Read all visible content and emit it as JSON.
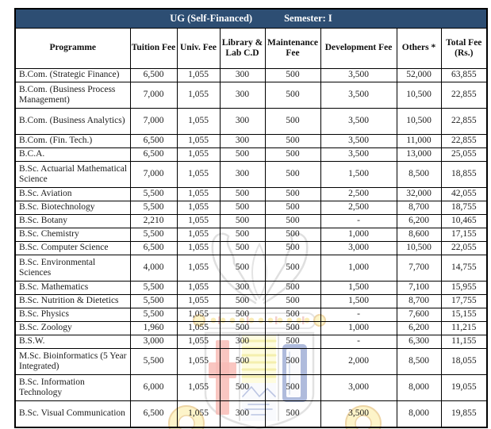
{
  "title": {
    "left": "UG (Self-Financed)",
    "right": "Semester: I"
  },
  "table": {
    "columns": [
      "Programme",
      "Tuition Fee",
      "Univ. Fee",
      "Library & Lab C.D",
      "Maintenance Fee",
      "Development Fee",
      "Others *",
      "Total Fee (Rs.)"
    ],
    "rows": [
      [
        "B.Com. (Strategic Finance)",
        "6,500",
        "1,055",
        "300",
        "500",
        "3,500",
        "52,000",
        "63,855"
      ],
      [
        "B.Com. (Business Process Management)",
        "7,000",
        "1,055",
        "300",
        "500",
        "3,500",
        "10,500",
        "22,855"
      ],
      [
        "B.Com. (Business Analytics)",
        "7,000",
        "1,055",
        "300",
        "500",
        "3,500",
        "10,500",
        "22,855"
      ],
      [
        "B.Com. (Fin. Tech.)",
        "6,500",
        "1,055",
        "300",
        "500",
        "3,500",
        "11,000",
        "22,855"
      ],
      [
        "B.C.A.",
        "6,500",
        "1,055",
        "500",
        "500",
        "3,500",
        "13,000",
        "25,055"
      ],
      [
        "B.Sc. Actuarial Mathematical Science",
        "7,000",
        "1,055",
        "300",
        "500",
        "1,500",
        "8,500",
        "18,855"
      ],
      [
        "B.Sc. Aviation",
        "5,500",
        "1,055",
        "500",
        "500",
        "2,500",
        "32,000",
        "42,055"
      ],
      [
        "B.Sc. Biotechnology",
        "5,500",
        "1,055",
        "500",
        "500",
        "2,500",
        "8,700",
        "18,755"
      ],
      [
        "B.Sc. Botany",
        "2,210",
        "1,055",
        "500",
        "500",
        "-",
        "6,200",
        "10,465"
      ],
      [
        "B.Sc. Chemistry",
        "5,500",
        "1,055",
        "500",
        "500",
        "1,000",
        "8,600",
        "17,155"
      ],
      [
        "B.Sc. Computer Science",
        "6,500",
        "1,055",
        "500",
        "500",
        "3,000",
        "10,500",
        "22,055"
      ],
      [
        "B.Sc. Environmental Sciences",
        "4,000",
        "1,055",
        "500",
        "500",
        "1,000",
        "7,700",
        "14,755"
      ],
      [
        "B.Sc. Mathematics",
        "5,500",
        "1,055",
        "300",
        "500",
        "1,500",
        "7,100",
        "15,955"
      ],
      [
        "B.Sc. Nutrition & Dietetics",
        "5,500",
        "1,055",
        "500",
        "500",
        "1,500",
        "8,700",
        "17,755"
      ],
      [
        "B.Sc. Physics",
        "5,500",
        "1,055",
        "500",
        "500",
        "-",
        "7,600",
        "15,155"
      ],
      [
        "B.Sc. Zoology",
        "1,960",
        "1,055",
        "500",
        "500",
        "1,000",
        "6,200",
        "11,215"
      ],
      [
        "B.S.W.",
        "3,000",
        "1,055",
        "300",
        "500",
        "-",
        "6,300",
        "11,155"
      ],
      [
        "M.Sc. Bioinformatics (5 Year Integrated)",
        "5,500",
        "1,055",
        "500",
        "500",
        "2,000",
        "8,500",
        "18,055"
      ],
      [
        "B.Sc. Information Technology",
        "6,000",
        "1,055",
        "500",
        "500",
        "3,000",
        "8,000",
        "19,055"
      ],
      [
        "B.Sc. Visual Communication",
        "6,500",
        "1,055",
        "300",
        "500",
        "3,500",
        "8,000",
        "19,855"
      ]
    ]
  },
  "watermark": {
    "name": "college-emblem-watermark"
  },
  "colors": {
    "title_bar_bg": "#2d4e73",
    "title_bar_text": "#ffffff",
    "header_text": "#101010",
    "body_text": "#1c1c1c",
    "border": "#000000",
    "emblem_red": "#ee6a5e",
    "emblem_blue": "#3c58a8",
    "emblem_yellow": "#f2cf4e",
    "emblem_outline": "#c4c4c4"
  }
}
